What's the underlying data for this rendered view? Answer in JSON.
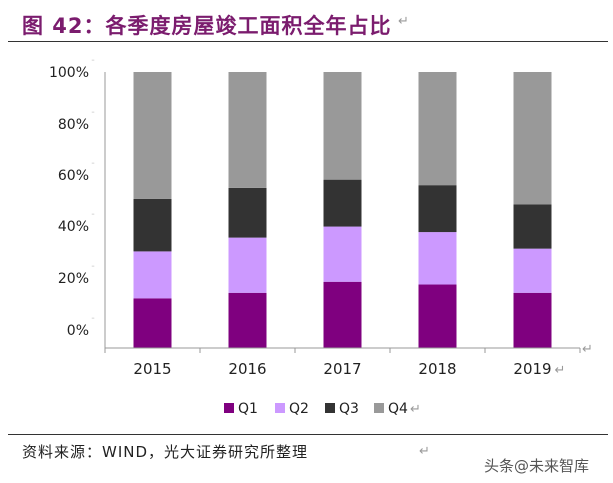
{
  "figure": {
    "title": "图 42：各季度房屋竣工面积全年占比",
    "source": "资料来源：WIND，光大证券研究所整理",
    "watermark": "头条@未来智库"
  },
  "colors": {
    "title": "#7b1c6e",
    "Q1": "#7f007f",
    "Q2": "#cc99ff",
    "Q3": "#333333",
    "Q4": "#999999"
  },
  "chart_data": {
    "type": "bar",
    "stacked": true,
    "title": "",
    "xlabel": "",
    "ylabel": "",
    "categories": [
      "2015",
      "2016",
      "2017",
      "2018",
      "2019"
    ],
    "y_ticks": [
      "0%",
      "20%",
      "40%",
      "60%",
      "80%",
      "100%"
    ],
    "ylim": [
      0,
      100
    ],
    "legend_position": "bottom",
    "series": [
      {
        "name": "Q1",
        "values": [
          18,
          20,
          24,
          23,
          20
        ]
      },
      {
        "name": "Q2",
        "values": [
          17,
          20,
          20,
          19,
          16
        ]
      },
      {
        "name": "Q3",
        "values": [
          19,
          18,
          17,
          17,
          16
        ]
      },
      {
        "name": "Q4",
        "values": [
          46,
          42,
          39,
          41,
          48
        ]
      }
    ]
  }
}
